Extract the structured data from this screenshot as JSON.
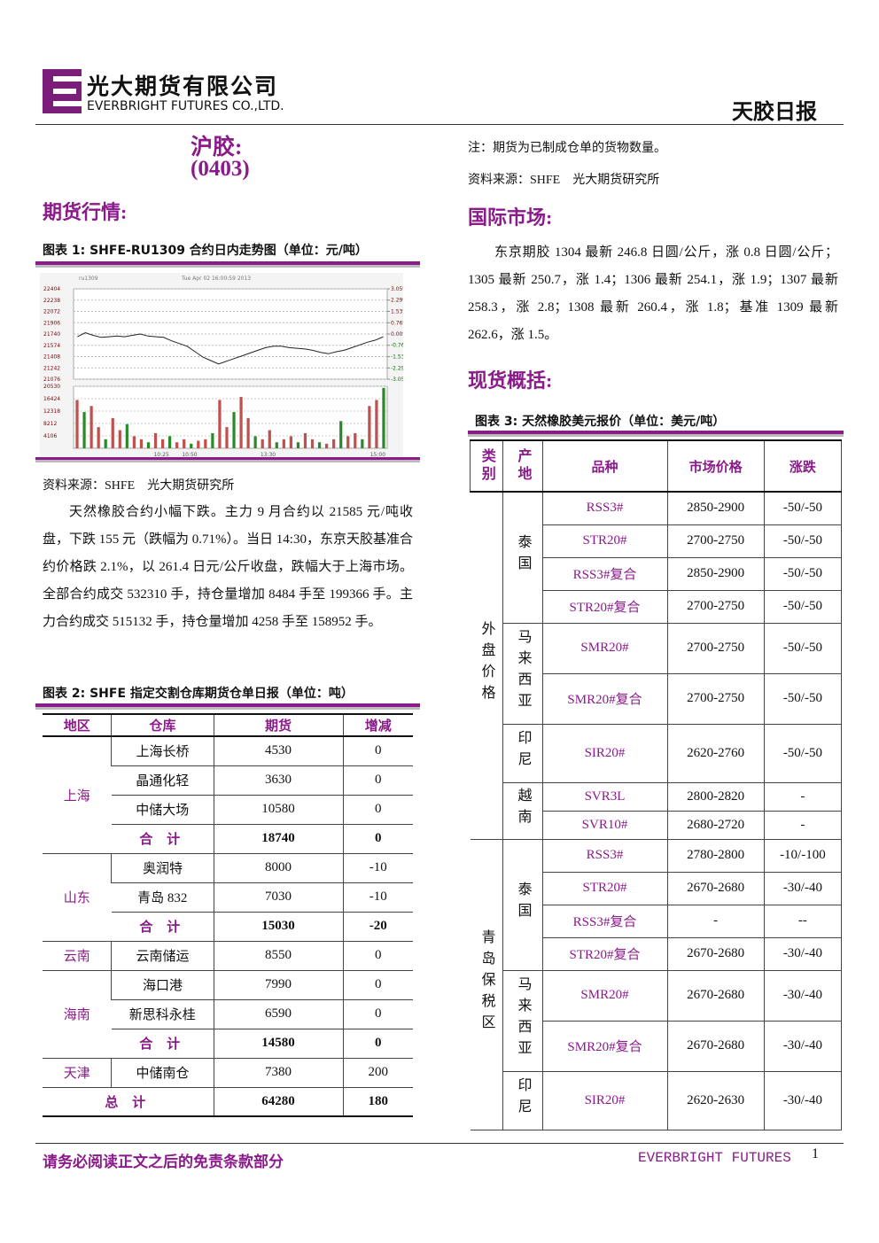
{
  "header": {
    "company_cn": "光大期货有限公司",
    "company_en": "EVERBRIGHT FUTURES CO.,LTD.",
    "report_title": "天胶日报"
  },
  "left": {
    "product": "沪胶:",
    "date": "(0403)",
    "section": "期货行情:",
    "figure1": {
      "caption": "图表 1: SHFE-RU1309 合约日内走势图（单位：元/吨）",
      "chart": {
        "type": "line",
        "symbol": "ru1309",
        "timestamp": "Tue Apr 02 16:00:59 2013",
        "color": "#222222",
        "values": [
          21700,
          21760,
          21720,
          21690,
          21700,
          21710,
          21700,
          21720,
          21740,
          21710,
          21700,
          21690,
          21640,
          21600,
          21560,
          21480,
          21400,
          21350,
          21300,
          21340,
          21380,
          21420,
          21460,
          21500,
          21540,
          21560,
          21560,
          21540,
          21530,
          21520,
          21500,
          21470,
          21450,
          21480,
          21500,
          21540,
          21580,
          21620,
          21650,
          21700
        ],
        "ylim": [
          21076,
          22404
        ],
        "yticks": [
          22404,
          22238,
          22072,
          21906,
          21740,
          21574,
          21408,
          21242,
          21076
        ],
        "y2ticks": [
          {
            "value": 3.05,
            "label": "3.05%"
          },
          {
            "value": 2.29,
            "label": "2.29%"
          },
          {
            "value": 1.53,
            "label": "1.53%"
          },
          {
            "value": 0.76,
            "label": "0.76%"
          },
          {
            "value": 0,
            "label": "0.00%"
          },
          {
            "value": -0.76,
            "label": "-0.76%"
          },
          {
            "value": -1.53,
            "label": "-1.53%"
          },
          {
            "value": -2.29,
            "label": "-2.29%"
          },
          {
            "value": -3.05,
            "label": "-3.05%"
          }
        ],
        "y2lim": [
          -3.05,
          3.05
        ],
        "x_labels": [
          "10:25",
          "10:50",
          "13:30",
          "15:00"
        ],
        "volume": {
          "color": "#c0504d",
          "values": [
            16000,
            12000,
            14000,
            7000,
            3000,
            10000,
            6000,
            8000,
            4000,
            3000,
            2000,
            5000,
            3000,
            4000,
            2000,
            3000,
            1500,
            2500,
            3000,
            5000,
            16000,
            7000,
            12000,
            17000,
            10000,
            4000,
            3000,
            6000,
            2000,
            3000,
            4000,
            2000,
            5000,
            3000,
            2000,
            1500,
            3000,
            9000,
            4000,
            5000,
            3000,
            14000,
            16000,
            20000
          ],
          "ylim": [
            0,
            20530
          ],
          "yticks": [
            20530,
            16424,
            12318,
            8212,
            4106
          ]
        }
      }
    },
    "source": "资料来源：SHFE　光大期货研究所",
    "paragraph": "天然橡胶合约小幅下跌。主力 9 月合约以 21585 元/吨收盘，下跌 155 元（跌幅为 0.71%）。当日 14:30，东京天胶基准合约价格跌 2.1%，以 261.4 日元/公斤收盘，跌幅大于上海市场。全部合约成交 532310 手，持仓量增加 8484 手至 199366 手。主力合约成交 515132 手，持仓量增加 4258 手至 158952 手。",
    "figure2": {
      "caption": "图表 2: SHFE 指定交割仓库期货仓单日报（单位：吨）",
      "header": [
        "地区",
        "仓库",
        "期货",
        "增减"
      ],
      "rows": [
        [
          "上海",
          "上海长桥",
          "4530",
          "0"
        ],
        [
          "晶通化轻",
          "3630",
          "0"
        ],
        [
          "中储大场",
          "10580",
          "0"
        ],
        [
          "合 计",
          "18740",
          "0"
        ],
        [
          "山东",
          "奥润特",
          "8000",
          "-10"
        ],
        [
          "青岛 832",
          "7030",
          "-10"
        ],
        [
          "合 计",
          "15030",
          "-20"
        ],
        [
          "云南",
          "云南储运",
          "8550",
          "0"
        ],
        [
          "海南",
          "海口港",
          "7990",
          "0"
        ],
        [
          "新思科永桂",
          "6590",
          "0"
        ],
        [
          "合 计",
          "14580",
          "0"
        ],
        [
          "天津",
          "中储南仓",
          "7380",
          "200"
        ],
        [
          "总 计",
          "64280",
          "180"
        ]
      ]
    }
  },
  "right": {
    "note": "注：期货为已制成仓单的货物数量。",
    "source": "资料来源：SHFE　光大期货研究所",
    "section1": "国际市场:",
    "paragraph": "东京期胶 1304 最新 246.8 日圆/公斤，涨 0.8 日圆/公斤； 1305 最新 250.7，涨 1.4；1306 最新 254.1，涨 1.9；1307 最新 258.3，涨 2.8；1308 最新 260.4，涨 1.8；基准 1309 最新 262.6，涨 1.5。",
    "section2": "现货概括:",
    "figure3": {
      "caption": "图表 3: 天然橡胶美元报价（单位：美元/吨）",
      "header": [
        "类别",
        "产地",
        "品种",
        "市场价格",
        "涨跌"
      ],
      "groups": [
        {
          "category": "外盘价格",
          "origins": [
            {
              "name": "泰国",
              "rows": [
                [
                  "RSS3#",
                  "2850-2900",
                  "-50/-50"
                ],
                [
                  "STR20#",
                  "2700-2750",
                  "-50/-50"
                ],
                [
                  "RSS3#复合",
                  "2850-2900",
                  "-50/-50"
                ],
                [
                  "STR20#复合",
                  "2700-2750",
                  "-50/-50"
                ]
              ]
            },
            {
              "name": "马来西亚",
              "rows": [
                [
                  "SMR20#",
                  "2700-2750",
                  "-50/-50"
                ],
                [
                  "SMR20#复合",
                  "2700-2750",
                  "-50/-50"
                ]
              ]
            },
            {
              "name": "印尼",
              "rows": [
                [
                  "SIR20#",
                  "2620-2760",
                  "-50/-50"
                ]
              ]
            },
            {
              "name": "越南",
              "rows": [
                [
                  "SVR3L",
                  "2800-2820",
                  "-"
                ],
                [
                  "SVR10#",
                  "2680-2720",
                  "-"
                ]
              ]
            }
          ]
        },
        {
          "category": "青岛保税区",
          "origins": [
            {
              "name": "泰国",
              "rows": [
                [
                  "RSS3#",
                  "2780-2800",
                  "-10/-100"
                ],
                [
                  "STR20#",
                  "2670-2680",
                  "-30/-40"
                ],
                [
                  "RSS3#复合",
                  "-",
                  "--"
                ],
                [
                  "STR20#复合",
                  "2670-2680",
                  "-30/-40"
                ]
              ]
            },
            {
              "name": "马来西亚",
              "rows": [
                [
                  "SMR20#",
                  "2670-2680",
                  "-30/-40"
                ],
                [
                  "SMR20#复合",
                  "2670-2680",
                  "-30/-40"
                ]
              ]
            },
            {
              "name": "印尼",
              "rows": [
                [
                  "SIR20#",
                  "2620-2630",
                  "-30/-40"
                ]
              ]
            }
          ]
        }
      ]
    }
  },
  "footer": {
    "disclaimer": "请务必阅读正文之后的免责条款部分",
    "brand": "EVERBRIGHT FUTURES",
    "page": "1"
  }
}
